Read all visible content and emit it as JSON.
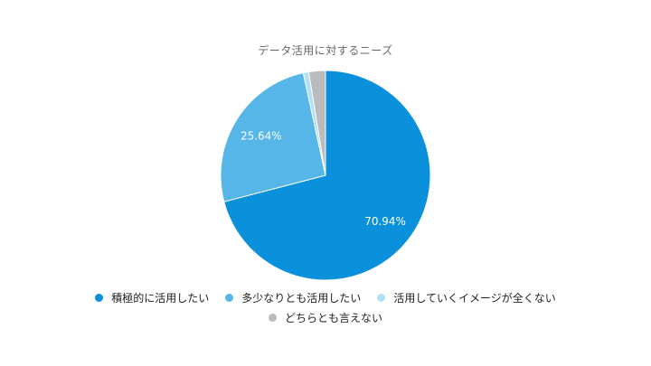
{
  "chart_data": {
    "type": "pie",
    "title": "データ活用に対するニーズ",
    "categories": [
      "積極的に活用したい",
      "多少なりとも活用したい",
      "活用していくイメージが全くない",
      "どちらとも言えない"
    ],
    "values": [
      70.94,
      25.64,
      0.85,
      2.56
    ],
    "data_labels": [
      "70.94%",
      "25.64%",
      "",
      ""
    ],
    "colors": [
      "#0b91db",
      "#55b6e7",
      "#b1dff5",
      "#bbbbbb"
    ],
    "legend": {
      "position": "bottom",
      "rows": [
        [
          0,
          1,
          2
        ],
        [
          3
        ]
      ]
    }
  }
}
